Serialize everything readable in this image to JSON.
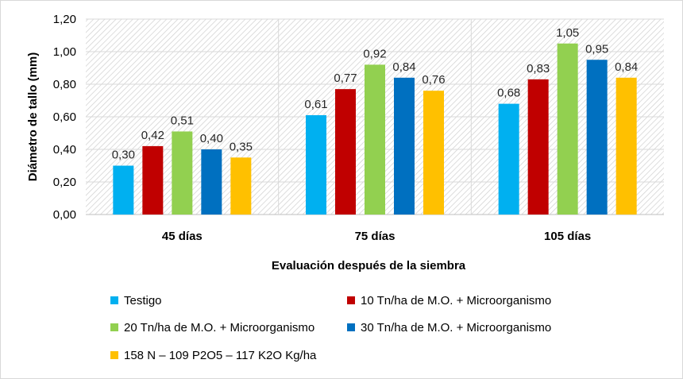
{
  "chart_data": {
    "type": "bar",
    "categories": [
      "45 días",
      "75 días",
      "105 días"
    ],
    "series": [
      {
        "name": "Testigo",
        "values": [
          0.3,
          0.61,
          0.68
        ],
        "color": "#00B0F0"
      },
      {
        "name": "10 Tn/ha de M.O. + Microorganismo",
        "values": [
          0.42,
          0.77,
          0.83
        ],
        "color": "#C00000"
      },
      {
        "name": "20 Tn/ha de M.O. + Microorganismo",
        "values": [
          0.51,
          0.92,
          1.05
        ],
        "color": "#92D050"
      },
      {
        "name": "30 Tn/ha de M.O. + Microorganismo",
        "values": [
          0.4,
          0.84,
          0.95
        ],
        "color": "#0070C0"
      },
      {
        "name": "158 N – 109 P2O5 – 117 K2O Kg/ha",
        "values": [
          0.35,
          0.76,
          0.84
        ],
        "color": "#FFC000"
      }
    ],
    "data_labels": [
      [
        "0,30",
        "0,61",
        "0,68"
      ],
      [
        "0,42",
        "0,77",
        "0,83"
      ],
      [
        "0,51",
        "0,92",
        "1,05"
      ],
      [
        "0,40",
        "0,84",
        "0,95"
      ],
      [
        "0,35",
        "0,76",
        "0,84"
      ]
    ],
    "y_ticks": [
      "0,00",
      "0,20",
      "0,40",
      "0,60",
      "0,80",
      "1,00",
      "1,20"
    ],
    "ylim": [
      0,
      1.2
    ],
    "xlabel": "Evaluación después de la siembra",
    "ylabel": "Diámetro de tallo (mm)",
    "grid": true,
    "legend_position": "bottom"
  }
}
